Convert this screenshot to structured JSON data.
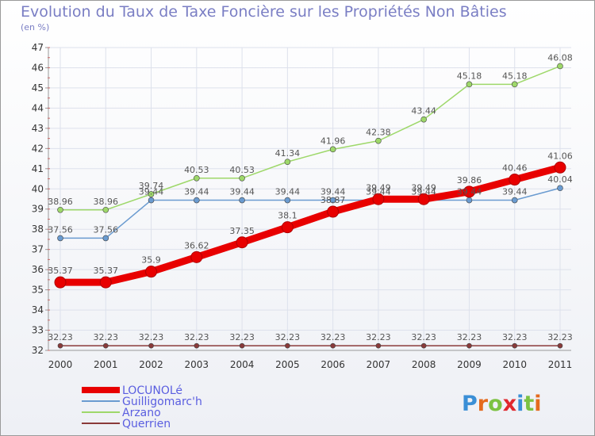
{
  "header": {
    "title": "Evolution du Taux de Taxe Foncière sur les Propriétés Non Bâties",
    "subtitle": "(en %)"
  },
  "brand": {
    "logo_text": "Proxiti",
    "letter_colors": [
      "#3a8fd6",
      "#e46a1e",
      "#7cc242",
      "#e0282e",
      "#3a8fd6",
      "#7cc242",
      "#e46a1e"
    ]
  },
  "chart_data": {
    "type": "line",
    "x": [
      "2000",
      "2001",
      "2002",
      "2003",
      "2004",
      "2005",
      "2006",
      "2007",
      "2008",
      "2009",
      "2010",
      "2011"
    ],
    "ylim": [
      32,
      47
    ],
    "yticks": [
      32,
      33,
      34,
      35,
      36,
      37,
      38,
      39,
      40,
      41,
      42,
      43,
      44,
      45,
      46,
      47
    ],
    "grid": true,
    "legend_position": "bottom-left",
    "series": [
      {
        "name": "LOCUNOLé",
        "color": "#e80000",
        "values": [
          35.37,
          35.37,
          35.9,
          36.62,
          37.35,
          38.1,
          38.87,
          39.49,
          39.49,
          39.86,
          40.46,
          41.06
        ],
        "labels": [
          "35.37",
          "35.37",
          "35.9",
          "36.62",
          "37.35",
          "38.1",
          "38.87",
          "39.49",
          "39.49",
          "39.86",
          "40.46",
          "41.06"
        ]
      },
      {
        "name": "Guilligomarc'h",
        "color": "#6a9bd0",
        "values": [
          37.56,
          37.56,
          39.44,
          39.44,
          39.44,
          39.44,
          39.44,
          39.44,
          39.44,
          39.44,
          39.44,
          40.04
        ],
        "labels": [
          "37.56",
          "37.56",
          "39.44",
          "39.44",
          "39.44",
          "39.44",
          "39.44",
          "39.44",
          "39.44",
          "39.44",
          "39.44",
          "40.04"
        ]
      },
      {
        "name": "Arzano",
        "color": "#9ed86a",
        "values": [
          38.96,
          38.96,
          39.74,
          40.53,
          40.53,
          41.34,
          41.96,
          42.38,
          43.44,
          45.18,
          45.18,
          46.08
        ],
        "labels": [
          "38.96",
          "38.96",
          "39.74",
          "40.53",
          "40.53",
          "41.34",
          "41.96",
          "42.38",
          "43.44",
          "45.18",
          "45.18",
          "46.08"
        ]
      },
      {
        "name": "Querrien",
        "color": "#8a3a3a",
        "values": [
          32.23,
          32.23,
          32.23,
          32.23,
          32.23,
          32.23,
          32.23,
          32.23,
          32.23,
          32.23,
          32.23,
          32.23
        ],
        "labels": [
          "32.23",
          "32.23",
          "32.23",
          "32.23",
          "32.23",
          "32.23",
          "32.23",
          "32.23",
          "32.23",
          "32.23",
          "32.23",
          "32.23"
        ]
      }
    ]
  }
}
